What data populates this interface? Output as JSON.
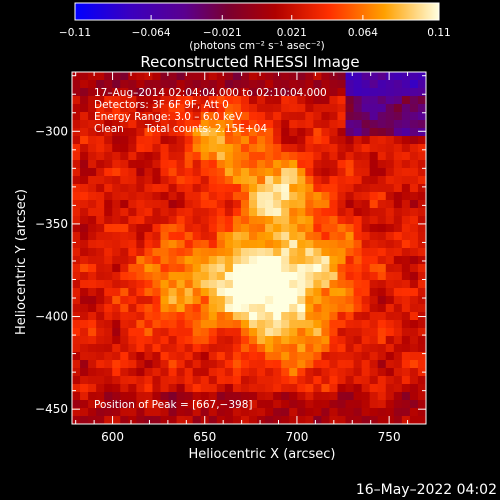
{
  "chart_data": {
    "type": "heatmap",
    "title": "Reconstructed RHESSI Image",
    "xlabel": "Heliocentric X (arcsec)",
    "ylabel": "Heliocentric Y (arcsec)",
    "xlim": [
      578,
      770
    ],
    "ylim": [
      -458,
      -268
    ],
    "x_ticks": [
      600,
      650,
      700,
      750
    ],
    "y_ticks": [
      -300,
      -350,
      -400,
      -450
    ],
    "x_tick_labels": [
      "600",
      "650",
      "700",
      "750"
    ],
    "y_tick_labels": [
      "−300",
      "−350",
      "−400",
      "−450"
    ],
    "colorbar": {
      "min": -0.11,
      "max": 0.11,
      "tick_values": [
        -0.11,
        -0.064,
        -0.021,
        0.021,
        0.064,
        0.11
      ],
      "tick_labels": [
        "−0.11",
        "−0.064",
        "−0.021",
        "0.021",
        "0.064",
        "0.11"
      ],
      "unit": "(photons cm⁻² s⁻¹ asec⁻²)"
    },
    "annotations": {
      "time": "17–Aug–2014 02:04:04.000 to 02:10:04.000",
      "detectors": "Detectors: 3F 6F 9F, Att 0",
      "energy": "Energy Range: 3.0 – 6.0 keV",
      "clean": "Clean",
      "counts": "Total counts: 2.15E+04",
      "peak": "Position of Peak = [667,−398]"
    },
    "peak": [
      667,
      -398
    ],
    "footer": "16–May–2022 04:02"
  }
}
